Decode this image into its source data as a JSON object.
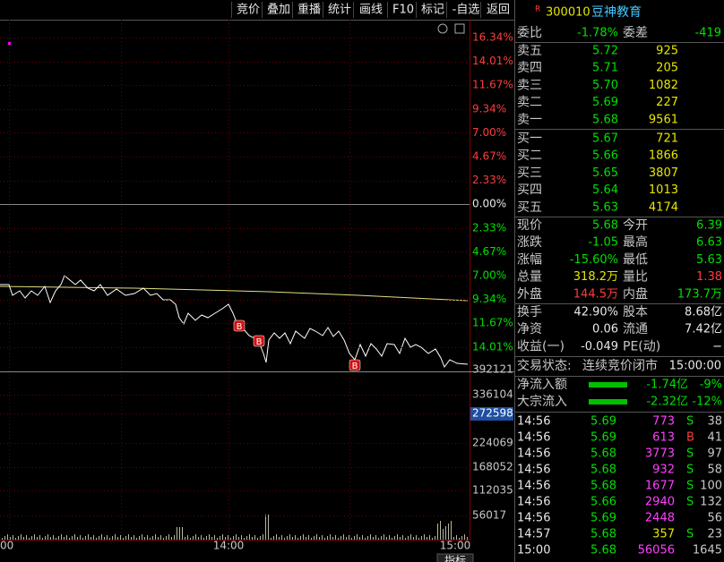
{
  "toolbar": [
    "竞价",
    "叠加",
    "重播",
    "统计",
    "画线",
    "F10",
    "标记",
    "-自选",
    "返回"
  ],
  "chart": {
    "price_axis_labels": [
      "16.34%",
      "14.01%",
      "11.67%",
      "9.34%",
      "7.00%",
      "4.67%",
      "2.33%",
      "0.00%",
      "2.33%",
      "4.67%",
      "7.00%",
      "9.34%",
      "11.67%",
      "14.01%"
    ],
    "volume_axis_labels": [
      "392121",
      "336104",
      "272598",
      "224069",
      "168052",
      "112035",
      "56017"
    ],
    "time_labels": [
      "00",
      "14:00",
      "15:00"
    ],
    "markers": [
      "B",
      "B",
      "B"
    ],
    "bottom_button": "指标"
  },
  "quote": {
    "flag": "R",
    "code": "300010",
    "name": "豆神教育"
  },
  "ratio": {
    "label": "委比",
    "value": "-1.78%",
    "diff_label": "委差",
    "diff": "-419"
  },
  "asks": [
    [
      "卖五",
      "5.72",
      "925"
    ],
    [
      "卖四",
      "5.71",
      "205"
    ],
    [
      "卖三",
      "5.70",
      "1082"
    ],
    [
      "卖二",
      "5.69",
      "227"
    ],
    [
      "卖一",
      "5.68",
      "9561"
    ]
  ],
  "bids": [
    [
      "买一",
      "5.67",
      "721"
    ],
    [
      "买二",
      "5.66",
      "1866"
    ],
    [
      "买三",
      "5.65",
      "3807"
    ],
    [
      "买四",
      "5.64",
      "1013"
    ],
    [
      "买五",
      "5.63",
      "4174"
    ]
  ],
  "stats": [
    [
      "现价",
      "5.68",
      "今开",
      "6.39"
    ],
    [
      "涨跌",
      "-1.05",
      "最高",
      "6.63"
    ],
    [
      "涨幅",
      "-15.60%",
      "最低",
      "5.63"
    ],
    [
      "总量",
      "318.2万",
      "量比",
      "1.38"
    ],
    [
      "外盘",
      "144.5万",
      "内盘",
      "173.7万"
    ],
    [
      "换手",
      "42.90%",
      "股本",
      "8.68亿"
    ],
    [
      "净资",
      "0.06",
      "流通",
      "7.42亿"
    ],
    [
      "收益(一)",
      "-0.049",
      "PE(动)",
      "−"
    ]
  ],
  "status": {
    "label": "交易状态:",
    "value": "连续竞价闭市",
    "time": "15:00:00"
  },
  "flows": [
    [
      "净流入额",
      "-1.74亿",
      "-9%"
    ],
    [
      "大宗流入",
      "-2.32亿",
      "-12%"
    ]
  ],
  "ticks": [
    [
      "14:56",
      "5.69",
      "773",
      "S",
      "38"
    ],
    [
      "14:56",
      "5.69",
      "613",
      "B",
      "41"
    ],
    [
      "14:56",
      "5.68",
      "3773",
      "S",
      "97"
    ],
    [
      "14:56",
      "5.68",
      "932",
      "S",
      "58"
    ],
    [
      "14:56",
      "5.68",
      "1677",
      "S",
      "100"
    ],
    [
      "14:56",
      "5.66",
      "2940",
      "S",
      "132"
    ],
    [
      "14:56",
      "5.69",
      "2448",
      null,
      "56"
    ],
    [
      "14:57",
      "5.68",
      "357",
      "S",
      "23"
    ],
    [
      "15:00",
      "5.68",
      "56056",
      null,
      "1645"
    ]
  ]
}
